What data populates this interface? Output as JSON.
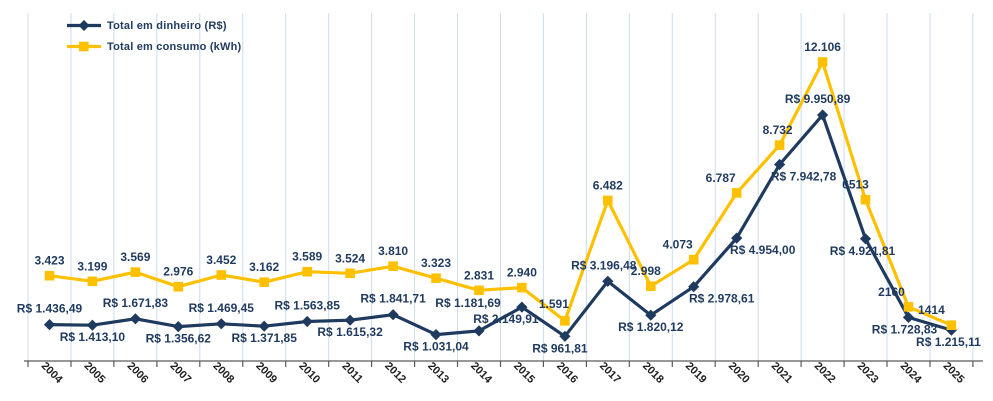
{
  "chart_data": {
    "type": "line",
    "title": "",
    "xlabel": "",
    "ylabel": "",
    "categories": [
      "2004",
      "2005",
      "2006",
      "2007",
      "2008",
      "2009",
      "2010",
      "2011",
      "2012",
      "2013",
      "2014",
      "2015",
      "2016",
      "2017",
      "2018",
      "2019",
      "2020",
      "2021",
      "2022",
      "2023",
      "2024",
      "2025"
    ],
    "series": [
      {
        "name": "Total em dinheiro (R$)",
        "color": "#1F3A5F",
        "marker": "diamond",
        "values": [
          1436.49,
          1413.1,
          1671.83,
          1356.62,
          1469.45,
          1371.85,
          1563.85,
          1615.32,
          1841.71,
          1031.04,
          1181.69,
          2149.91,
          961.81,
          3196.48,
          1820.12,
          2978.61,
          4954.0,
          7942.78,
          9950.89,
          4921.81,
          1728.83,
          1215.11
        ],
        "labels": [
          "R$ 1.436,49",
          "R$ 1.413,10",
          "R$ 1.671,83",
          "R$ 1.356,62",
          "R$ 1.469,45",
          "R$ 1.371,85",
          "R$ 1.563,85",
          "R$ 1.615,32",
          "R$ 1.841,71",
          "R$ 1.031,04",
          "R$ 1.181,69",
          "R$ 2.149,91",
          "R$ 961,81",
          "R$ 3.196,48",
          "R$ 1.820,12",
          "R$ 2.978,61",
          "R$ 4.954,00",
          "R$ 7.942,78",
          "R$ 9.950,89",
          "R$ 4.921,81",
          "R$ 1.728,83",
          "R$ 1.215,11"
        ],
        "label_side": [
          "above",
          "below",
          "above",
          "below",
          "above",
          "below",
          "above",
          "below",
          "above",
          "below",
          "above",
          "below",
          "below",
          "above",
          "below",
          "below",
          "below",
          "below",
          "above",
          "below",
          "below",
          "below"
        ],
        "label_dx": [
          0,
          0,
          0,
          0,
          0,
          0,
          0,
          0,
          0,
          0,
          -11,
          -16,
          -5,
          -4,
          0,
          28,
          26,
          24,
          -5,
          -3,
          -4,
          -3
        ],
        "label_dy": [
          0,
          0,
          0,
          0,
          0,
          0,
          0,
          0,
          0,
          0,
          -12,
          0,
          0,
          0,
          0,
          0,
          0,
          0,
          0,
          0,
          0,
          0
        ]
      },
      {
        "name": "Total em consumo (kWh)",
        "color": "#FFC000",
        "marker": "square",
        "values": [
          3423,
          3199,
          3569,
          2976,
          3452,
          3162,
          3589,
          3524,
          3810,
          3323,
          2831,
          2940,
          1591,
          6482,
          2998,
          4073,
          6787,
          8732,
          12106,
          6513,
          2160,
          1414
        ],
        "labels": [
          "3.423",
          "3.199",
          "3.569",
          "2.976",
          "3.452",
          "3.162",
          "3.589",
          "3.524",
          "3.810",
          "3.323",
          "2.831",
          "2.940",
          "1.591",
          "6.482",
          "2.998",
          "4.073",
          "6.787",
          "8.732",
          "12.106",
          "6513",
          "2160",
          "1414"
        ],
        "label_side": [
          "above",
          "above",
          "above",
          "above",
          "above",
          "above",
          "above",
          "above",
          "above",
          "above",
          "above",
          "above",
          "above",
          "above",
          "above",
          "above",
          "above",
          "above",
          "above",
          "above",
          "above",
          "above"
        ],
        "label_dx": [
          0,
          0,
          0,
          0,
          0,
          0,
          0,
          0,
          0,
          0,
          0,
          0,
          -11,
          0,
          -5,
          -16,
          -16,
          -2,
          0,
          -10,
          -17,
          -20
        ],
        "label_dy": [
          0,
          0,
          0,
          0,
          0,
          0,
          0,
          0,
          0,
          0,
          0,
          0,
          -2,
          0,
          0,
          0,
          0,
          0,
          0,
          0,
          0,
          0
        ]
      }
    ],
    "ylim": [
      0,
      14000
    ],
    "grid": "vertical-only",
    "legend_position": "top-left",
    "colors": {
      "label": "#1F3A5F",
      "gridline": "#CBDCF1",
      "axis": "#5A5A5A",
      "tick_label": "#1F1F1F",
      "background": "#FFFFFF"
    }
  }
}
